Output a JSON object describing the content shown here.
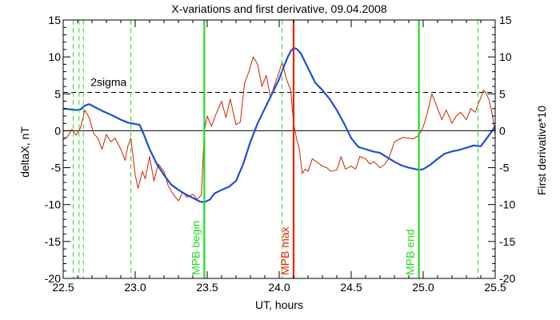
{
  "chart_data": {
    "type": "line",
    "title": "X-variations and first derivative, 09.04.2008",
    "xlabel": "UT, hours",
    "ylabel_left": "deltaX, nT",
    "ylabel_right": "First derivative*10",
    "xlim": [
      22.5,
      25.5
    ],
    "ylim_left": [
      -20,
      15
    ],
    "ylim_right": [
      -20,
      15
    ],
    "xticks": [
      "22.5",
      "23.0",
      "23.5",
      "24.0",
      "24.5",
      "25.0",
      "25.5"
    ],
    "yticks_left": [
      "-20",
      "-15",
      "-10",
      "-5",
      "0",
      "5",
      "10",
      "15"
    ],
    "yticks_right": [
      "-20",
      "-15",
      "-10",
      "-5",
      "0",
      "5",
      "10",
      "15"
    ],
    "grid": false,
    "colors": {
      "deltaX": "#1f4fd6",
      "derivative": "#cc2200",
      "mpb_line": "#22dd22",
      "mpb_max_line": "#ee2200",
      "sigma": "#000000"
    },
    "sigma_level": 5.2,
    "sigma_label": "2sigma",
    "zero_line": 0,
    "dashed_markers_x": [
      22.57,
      22.61,
      22.64,
      22.97,
      24.02,
      25.38
    ],
    "vertical_lines": [
      {
        "x": 23.48,
        "label": "MPB begin",
        "color": "#22dd22"
      },
      {
        "x": 24.1,
        "label": "MPB max",
        "color": "#ee2200"
      },
      {
        "x": 24.97,
        "label": "MPB end",
        "color": "#22dd22"
      }
    ],
    "series": [
      {
        "key": "deltaX",
        "x": [
          22.5,
          22.55,
          22.6,
          22.62,
          22.65,
          22.68,
          22.72,
          22.78,
          22.85,
          22.9,
          22.95,
          23.0,
          23.03,
          23.06,
          23.1,
          23.15,
          23.2,
          23.25,
          23.3,
          23.35,
          23.4,
          23.45,
          23.48,
          23.52,
          23.55,
          23.6,
          23.65,
          23.7,
          23.75,
          23.8,
          23.85,
          23.9,
          23.95,
          24.0,
          24.03,
          24.06,
          24.08,
          24.1,
          24.12,
          24.15,
          24.2,
          24.25,
          24.3,
          24.35,
          24.4,
          24.45,
          24.5,
          24.55,
          24.6,
          24.65,
          24.7,
          24.75,
          24.8,
          24.85,
          24.9,
          24.97,
          25.0,
          25.05,
          25.1,
          25.15,
          25.2,
          25.25,
          25.3,
          25.35,
          25.4,
          25.45,
          25.5
        ],
        "values": [
          3.0,
          2.9,
          2.8,
          2.9,
          3.4,
          3.6,
          3.2,
          2.6,
          2.0,
          1.5,
          1.1,
          0.9,
          0.8,
          -0.5,
          -2.5,
          -4.5,
          -6.0,
          -7.3,
          -8.0,
          -8.6,
          -9.1,
          -9.6,
          -9.7,
          -9.3,
          -8.5,
          -8.0,
          -7.6,
          -6.8,
          -4.5,
          -1.5,
          1.0,
          3.0,
          5.0,
          7.0,
          8.6,
          10.0,
          10.8,
          11.2,
          11.1,
          10.5,
          8.5,
          6.5,
          5.5,
          4.3,
          2.8,
          1.0,
          -1.0,
          -2.2,
          -2.5,
          -2.8,
          -3.0,
          -3.6,
          -4.2,
          -4.7,
          -5.0,
          -5.3,
          -5.2,
          -4.6,
          -3.8,
          -3.1,
          -2.8,
          -2.6,
          -2.3,
          -2.0,
          -2.1,
          -0.8,
          0.6
        ]
      },
      {
        "key": "derivative",
        "x": [
          22.5,
          22.53,
          22.56,
          22.59,
          22.62,
          22.65,
          22.68,
          22.71,
          22.74,
          22.77,
          22.8,
          22.83,
          22.86,
          22.9,
          22.93,
          22.95,
          22.97,
          23.0,
          23.02,
          23.05,
          23.07,
          23.1,
          23.13,
          23.16,
          23.2,
          23.23,
          23.26,
          23.3,
          23.33,
          23.36,
          23.4,
          23.43,
          23.46,
          23.48,
          23.5,
          23.53,
          23.56,
          23.6,
          23.63,
          23.66,
          23.7,
          23.73,
          23.76,
          23.79,
          23.82,
          23.85,
          23.88,
          23.91,
          23.94,
          23.97,
          24.0,
          24.02,
          24.05,
          24.08,
          24.1,
          24.12,
          24.14,
          24.16,
          24.18,
          24.2,
          24.23,
          24.26,
          24.3,
          24.33,
          24.36,
          24.4,
          24.43,
          24.46,
          24.5,
          24.53,
          24.56,
          24.6,
          24.63,
          24.66,
          24.7,
          24.73,
          24.76,
          24.8,
          24.83,
          24.86,
          24.9,
          24.93,
          24.97,
          25.0,
          25.03,
          25.06,
          25.1,
          25.13,
          25.16,
          25.2,
          25.23,
          25.26,
          25.3,
          25.33,
          25.36,
          25.4,
          25.42,
          25.44,
          25.46,
          25.48,
          25.5
        ],
        "values": [
          -1.2,
          -0.8,
          0.2,
          -0.6,
          0.4,
          2.8,
          1.8,
          -0.3,
          -1.0,
          -2.5,
          -0.5,
          -1.5,
          -1.0,
          -2.5,
          -4.0,
          -2.0,
          -1.0,
          -6.0,
          -7.8,
          -5.5,
          -6.5,
          -3.5,
          -6.8,
          -4.5,
          -5.5,
          -7.5,
          -8.5,
          -9.5,
          -8.3,
          -9.0,
          -8.6,
          -9.3,
          -8.7,
          0.0,
          2.0,
          0.6,
          2.2,
          4.0,
          1.8,
          4.3,
          0.8,
          1.2,
          6.5,
          8.0,
          10.0,
          9.0,
          6.0,
          7.5,
          4.5,
          6.3,
          8.0,
          9.3,
          7.0,
          5.5,
          1.0,
          -1.0,
          -2.5,
          -5.8,
          -5.2,
          -5.5,
          -3.8,
          -4.2,
          -4.8,
          -5.0,
          -5.5,
          -5.3,
          -3.5,
          -5.2,
          -4.8,
          -5.2,
          -3.5,
          -3.8,
          -4.5,
          -4.2,
          -5.0,
          -4.6,
          -3.8,
          -1.5,
          -1.2,
          -0.9,
          -1.0,
          -1.1,
          -0.6,
          0.5,
          2.5,
          5.0,
          3.0,
          1.5,
          2.8,
          1.0,
          2.0,
          2.5,
          1.5,
          3.0,
          2.5,
          4.5,
          5.5,
          5.0,
          4.0,
          2.2,
          -0.5
        ]
      }
    ]
  }
}
